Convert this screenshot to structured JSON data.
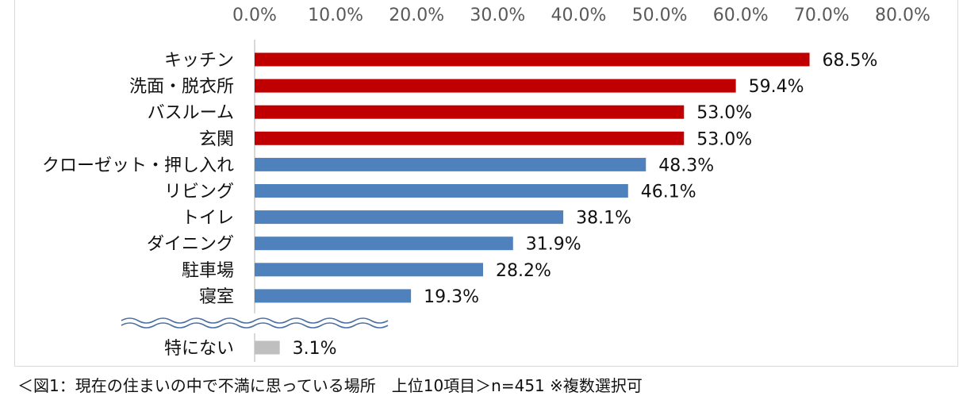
{
  "chart_data": {
    "type": "bar",
    "orientation": "horizontal",
    "x_ticks": [
      "0.0%",
      "10.0%",
      "20.0%",
      "30.0%",
      "40.0%",
      "50.0%",
      "60.0%",
      "70.0%",
      "80.0%"
    ],
    "xlim": [
      0,
      80
    ],
    "grid": false,
    "categories": [
      "キッチン",
      "洗面・脱衣所",
      "バスルーム",
      "玄関",
      "クローゼット・押し入れ",
      "リビング",
      "トイレ",
      "ダイニング",
      "駐車場",
      "寝室",
      "特にない"
    ],
    "values": [
      68.5,
      59.4,
      53.0,
      53.0,
      48.3,
      46.1,
      38.1,
      31.9,
      28.2,
      19.3,
      3.1
    ],
    "value_labels": [
      "68.5%",
      "59.4%",
      "53.0%",
      "53.0%",
      "48.3%",
      "46.1%",
      "38.1%",
      "31.9%",
      "28.2%",
      "19.3%",
      "3.1%"
    ],
    "bar_colors": [
      "#c00000",
      "#c00000",
      "#c00000",
      "#c00000",
      "#4f81bd",
      "#4f81bd",
      "#4f81bd",
      "#4f81bd",
      "#4f81bd",
      "#4f81bd",
      "#bfbfbf"
    ],
    "axis_break_after_category": "寝室"
  },
  "caption": "＜図1：現在の住まいの中で不満に思っている場所　上位10項目＞n=451 ※複数選択可"
}
